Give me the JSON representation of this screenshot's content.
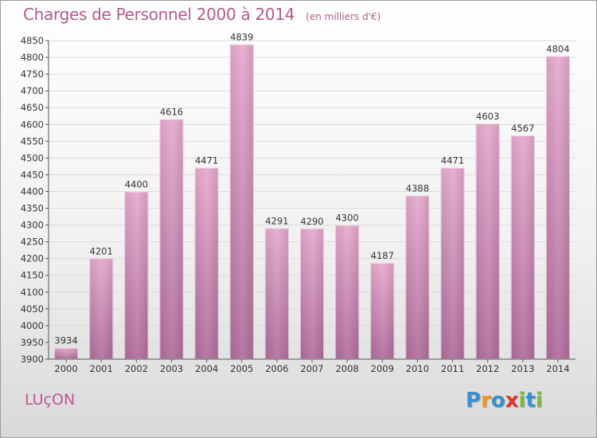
{
  "header": {
    "title": "Charges de Personnel 2000 à 2014",
    "subtitle": "(en milliers d'€)"
  },
  "footer": {
    "commune": "LUçON",
    "logo": {
      "letters": [
        "P",
        "r",
        "o",
        "x",
        "i",
        "t",
        "i"
      ],
      "colors": [
        "#3a8fd0",
        "#f2931e",
        "#3a8fd0",
        "#e2332c",
        "#7ab83e",
        "#3a8fd0",
        "#7ab83e"
      ]
    }
  },
  "colors": {
    "bar_light": "#e6a9cd",
    "bar_dark": "#b06d9b",
    "grid": "#dcdcdc",
    "axis": "#555555",
    "label": "#333333"
  },
  "chart_data": {
    "type": "bar",
    "categories": [
      "2000",
      "2001",
      "2002",
      "2003",
      "2004",
      "2005",
      "2006",
      "2007",
      "2008",
      "2009",
      "2010",
      "2011",
      "2012",
      "2013",
      "2014"
    ],
    "values": [
      3934,
      4201,
      4400,
      4616,
      4471,
      4839,
      4291,
      4290,
      4300,
      4187,
      4388,
      4471,
      4603,
      4567,
      4804
    ],
    "ylim": [
      3900,
      4850
    ],
    "yticks": [
      3900,
      3950,
      4000,
      4050,
      4100,
      4150,
      4200,
      4250,
      4300,
      4350,
      4400,
      4450,
      4500,
      4550,
      4600,
      4650,
      4700,
      4750,
      4800,
      4850
    ],
    "grid": true,
    "legend": "none"
  }
}
